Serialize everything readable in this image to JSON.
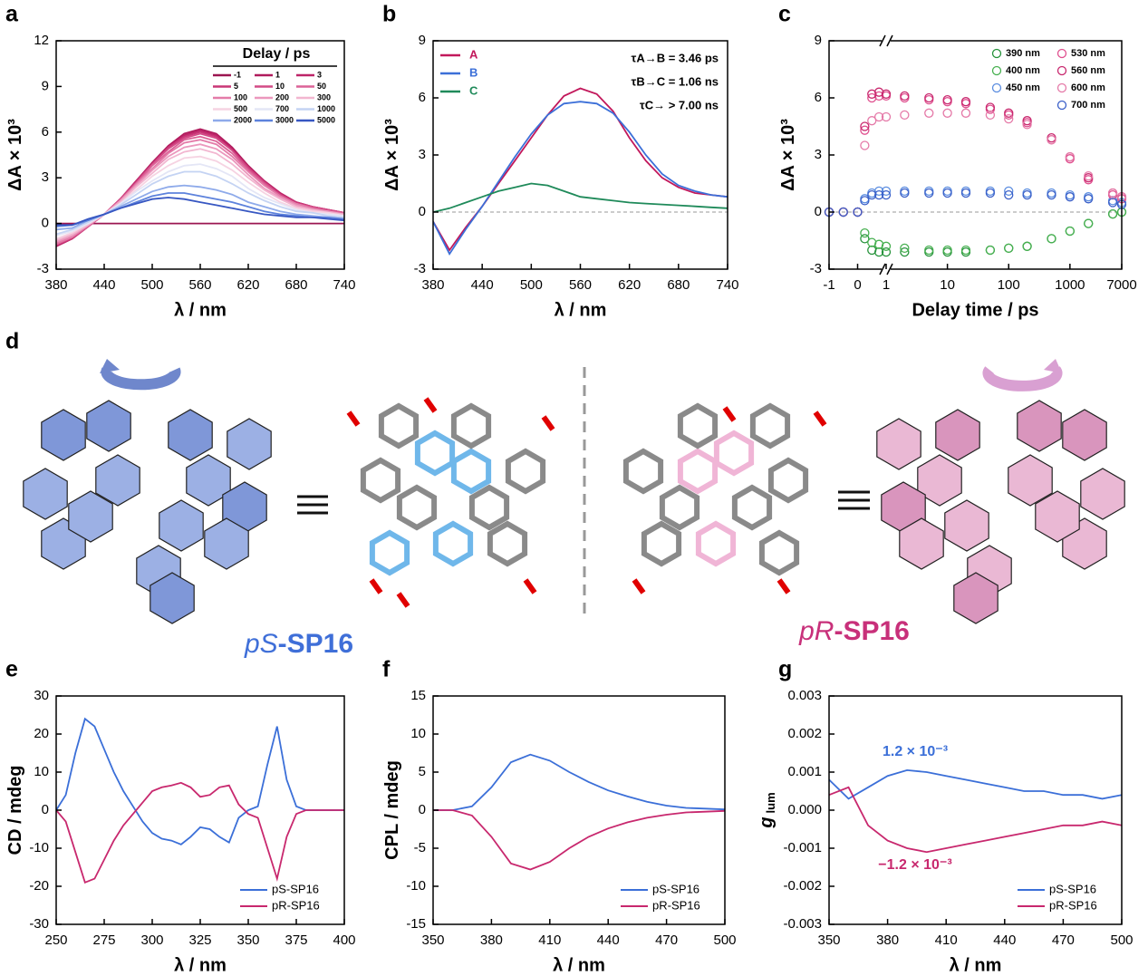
{
  "chart_data": [
    {
      "panel": "a",
      "type": "line",
      "x_label": "λ / nm",
      "y_label": "ΔA × 10³",
      "xlim": [
        380,
        740
      ],
      "ylim": [
        -3,
        12
      ],
      "xticks": [
        380,
        440,
        500,
        560,
        620,
        680,
        740
      ],
      "yticks": [
        -3,
        0,
        3,
        6,
        9,
        12
      ],
      "legend": "upper right",
      "legend_title": "Delay / ps",
      "legend_columns": 3,
      "x": [
        380,
        400,
        420,
        440,
        460,
        480,
        500,
        520,
        540,
        560,
        580,
        600,
        620,
        640,
        660,
        680,
        700,
        720,
        740
      ],
      "series": [
        {
          "name": "-1",
          "color": "#9b1550",
          "values": [
            0,
            0,
            0,
            0,
            0,
            0,
            0,
            0,
            0,
            0,
            0,
            0,
            0,
            0,
            0,
            0,
            0,
            0,
            0
          ]
        },
        {
          "name": "1",
          "color": "#b01a5c",
          "values": [
            -1.5,
            -1.0,
            -0.2,
            0.6,
            1.6,
            2.8,
            4.0,
            5.1,
            5.9,
            6.2,
            5.9,
            5.0,
            3.8,
            2.8,
            2.0,
            1.4,
            1.1,
            0.9,
            0.7
          ]
        },
        {
          "name": "3",
          "color": "#bd2468",
          "values": [
            -1.5,
            -1.0,
            -0.2,
            0.6,
            1.6,
            2.8,
            3.9,
            5.0,
            5.8,
            6.1,
            5.8,
            4.9,
            3.7,
            2.8,
            2.0,
            1.4,
            1.1,
            0.9,
            0.7
          ]
        },
        {
          "name": "5",
          "color": "#c93676",
          "values": [
            -1.4,
            -1.0,
            -0.2,
            0.6,
            1.6,
            2.7,
            3.9,
            5.0,
            5.7,
            6.0,
            5.7,
            4.8,
            3.7,
            2.7,
            1.9,
            1.4,
            1.1,
            0.9,
            0.7
          ]
        },
        {
          "name": "10",
          "color": "#d34a86",
          "values": [
            -1.4,
            -0.9,
            -0.2,
            0.6,
            1.6,
            2.7,
            3.9,
            4.9,
            5.6,
            5.9,
            5.6,
            4.8,
            3.6,
            2.7,
            1.9,
            1.3,
            1.1,
            0.9,
            0.7
          ]
        },
        {
          "name": "50",
          "color": "#dc6297",
          "values": [
            -1.4,
            -0.9,
            -0.2,
            0.6,
            1.5,
            2.6,
            3.8,
            4.7,
            5.5,
            5.7,
            5.4,
            4.6,
            3.5,
            2.6,
            1.8,
            1.3,
            1.0,
            0.8,
            0.7
          ]
        },
        {
          "name": "100",
          "color": "#e47ca9",
          "values": [
            -1.3,
            -0.9,
            -0.1,
            0.6,
            1.5,
            2.6,
            3.6,
            4.6,
            5.3,
            5.5,
            5.2,
            4.4,
            3.4,
            2.5,
            1.8,
            1.3,
            1.0,
            0.8,
            0.6
          ]
        },
        {
          "name": "200",
          "color": "#eb98bd",
          "values": [
            -1.2,
            -0.8,
            -0.1,
            0.6,
            1.5,
            2.5,
            3.5,
            4.4,
            5.0,
            5.2,
            4.9,
            4.2,
            3.2,
            2.3,
            1.7,
            1.2,
            0.9,
            0.8,
            0.6
          ]
        },
        {
          "name": "300",
          "color": "#f2b6d0",
          "values": [
            -1.1,
            -0.7,
            -0.1,
            0.6,
            1.4,
            2.4,
            3.3,
            4.2,
            4.7,
            4.9,
            4.6,
            3.9,
            3.0,
            2.2,
            1.6,
            1.1,
            0.9,
            0.7,
            0.6
          ]
        },
        {
          "name": "500",
          "color": "#f6d3e2",
          "values": [
            -1.0,
            -0.6,
            0.0,
            0.6,
            1.3,
            2.2,
            3.1,
            3.8,
            4.3,
            4.4,
            4.1,
            3.5,
            2.7,
            2.0,
            1.4,
            1.0,
            0.8,
            0.7,
            0.5
          ]
        },
        {
          "name": "700",
          "color": "#e4e6f6",
          "values": [
            -0.8,
            -0.5,
            0.0,
            0.6,
            1.3,
            2.1,
            2.8,
            3.4,
            3.8,
            3.9,
            3.6,
            3.1,
            2.3,
            1.7,
            1.3,
            0.9,
            0.7,
            0.6,
            0.5
          ]
        },
        {
          "name": "1000",
          "color": "#c4d3f3",
          "values": [
            -0.7,
            -0.4,
            0.1,
            0.6,
            1.2,
            1.9,
            2.6,
            3.1,
            3.4,
            3.4,
            3.1,
            2.6,
            2.0,
            1.5,
            1.1,
            0.8,
            0.7,
            0.5,
            0.4
          ]
        },
        {
          "name": "2000",
          "color": "#8eaaea",
          "values": [
            -0.4,
            -0.3,
            0.2,
            0.6,
            1.1,
            1.6,
            2.1,
            2.4,
            2.5,
            2.4,
            2.2,
            1.9,
            1.4,
            1.1,
            0.8,
            0.6,
            0.5,
            0.4,
            0.3
          ]
        },
        {
          "name": "3000",
          "color": "#5d82dc",
          "values": [
            -0.2,
            -0.1,
            0.2,
            0.6,
            1.0,
            1.4,
            1.8,
            2.0,
            2.0,
            1.8,
            1.6,
            1.4,
            1.1,
            0.8,
            0.6,
            0.5,
            0.4,
            0.4,
            0.3
          ]
        },
        {
          "name": "5000",
          "color": "#3757c2",
          "values": [
            -0.1,
            -0.1,
            0.3,
            0.6,
            1.0,
            1.3,
            1.6,
            1.7,
            1.6,
            1.4,
            1.2,
            1.0,
            0.8,
            0.6,
            0.5,
            0.4,
            0.4,
            0.3,
            0.2
          ]
        }
      ]
    },
    {
      "panel": "b",
      "type": "line",
      "x_label": "λ / nm",
      "y_label": "ΔA × 10³",
      "xlim": [
        380,
        740
      ],
      "ylim": [
        -3,
        9
      ],
      "xticks": [
        380,
        440,
        500,
        560,
        620,
        680,
        740
      ],
      "yticks": [
        -3,
        0,
        3,
        6,
        9
      ],
      "legend": "upper left",
      "reference_line": 0,
      "annotations": [
        {
          "text": "τA→B = 3.46 ps"
        },
        {
          "text": "τB→C = 1.06 ns"
        },
        {
          "text": "τC→ > 7.00 ns"
        }
      ],
      "x": [
        380,
        400,
        420,
        440,
        460,
        480,
        500,
        520,
        540,
        560,
        580,
        600,
        620,
        640,
        660,
        680,
        700,
        720,
        740
      ],
      "series": [
        {
          "name": "A",
          "color": "#c2185b",
          "values": [
            -0.5,
            -2.0,
            -0.8,
            0.3,
            1.5,
            2.7,
            3.9,
            5.1,
            6.1,
            6.5,
            6.2,
            5.3,
            3.9,
            2.7,
            1.8,
            1.3,
            1.0,
            0.9,
            0.8
          ]
        },
        {
          "name": "B",
          "color": "#3b6fd8",
          "values": [
            -0.5,
            -2.2,
            -0.9,
            0.3,
            1.6,
            2.9,
            4.1,
            5.1,
            5.7,
            5.8,
            5.7,
            5.2,
            4.2,
            3.0,
            2.0,
            1.4,
            1.1,
            0.9,
            0.8
          ]
        },
        {
          "name": "C",
          "color": "#1f8a5a",
          "values": [
            0,
            0.2,
            0.5,
            0.8,
            1.1,
            1.3,
            1.5,
            1.4,
            1.1,
            0.8,
            0.7,
            0.6,
            0.5,
            0.45,
            0.4,
            0.35,
            0.3,
            0.25,
            0.2
          ]
        }
      ]
    },
    {
      "panel": "c",
      "type": "scatter",
      "x_label": "Delay time / ps",
      "y_label": "ΔA × 10³",
      "xlim": [
        -1,
        7000
      ],
      "ylim": [
        -3,
        9
      ],
      "x_scale": "broken linear-log",
      "x_break": 1,
      "xticks": [
        -1,
        0,
        1,
        10,
        100,
        1000,
        7000
      ],
      "yticks": [
        -3,
        0,
        3,
        6,
        9
      ],
      "legend": "upper right",
      "reference_line": 0,
      "x": [
        -1,
        -0.5,
        0,
        0.25,
        0.5,
        0.75,
        1,
        2,
        5,
        10,
        20,
        50,
        100,
        200,
        500,
        1000,
        2000,
        5000,
        7000
      ],
      "series": [
        {
          "name": "390 nm",
          "color": "#25923a",
          "values": [
            0,
            0,
            0,
            -1.4,
            -2.0,
            -2.1,
            -2.1,
            -2.1,
            -2.1,
            -2.1,
            -2.1,
            -2.0,
            -1.9,
            -1.8,
            -1.4,
            -1.0,
            -0.6,
            -0.1,
            0
          ]
        },
        {
          "name": "400 nm",
          "color": "#47b050",
          "values": [
            0,
            0,
            0,
            -1.1,
            -1.6,
            -1.7,
            -1.8,
            -1.9,
            -2.0,
            -2.0,
            -2.0,
            -2.0,
            -1.9,
            -1.8,
            -1.4,
            -1.0,
            -0.6,
            -0.1,
            0
          ]
        },
        {
          "name": "450 nm",
          "color": "#5b8de0",
          "values": [
            0,
            0,
            0,
            0.7,
            1.0,
            1.1,
            1.1,
            1.1,
            1.1,
            1.1,
            1.1,
            1.1,
            1.1,
            1.0,
            1.0,
            0.9,
            0.8,
            0.6,
            0.5
          ]
        },
        {
          "name": "530 nm",
          "color": "#e0508f",
          "values": [
            0,
            0,
            0,
            4.3,
            6.0,
            6.1,
            6.1,
            6.0,
            5.9,
            5.8,
            5.7,
            5.4,
            5.1,
            4.7,
            3.8,
            2.8,
            1.7,
            0.9,
            0.7
          ]
        },
        {
          "name": "560 nm",
          "color": "#c8286e",
          "values": [
            0,
            0,
            0,
            4.5,
            6.2,
            6.3,
            6.2,
            6.1,
            6.0,
            5.9,
            5.8,
            5.5,
            5.2,
            4.8,
            3.9,
            2.9,
            1.8,
            1.0,
            0.8
          ]
        },
        {
          "name": "600 nm",
          "color": "#e57aa8",
          "values": [
            0,
            0,
            0,
            3.5,
            4.8,
            5.0,
            5.0,
            5.1,
            5.2,
            5.2,
            5.2,
            5.1,
            4.9,
            4.6,
            3.8,
            2.9,
            1.9,
            1.0,
            0.8
          ]
        },
        {
          "name": "700 nm",
          "color": "#3a5fc8",
          "values": [
            0,
            0,
            0,
            0.6,
            0.9,
            0.9,
            0.9,
            1.0,
            1.0,
            1.0,
            1.0,
            1.0,
            0.9,
            0.9,
            0.9,
            0.8,
            0.7,
            0.5,
            0.4
          ]
        }
      ]
    },
    {
      "panel": "e",
      "type": "line",
      "x_label": "λ / nm",
      "y_label": "CD / mdeg",
      "xlim": [
        250,
        400
      ],
      "ylim": [
        -30,
        30
      ],
      "xticks": [
        250,
        275,
        300,
        325,
        350,
        375,
        400
      ],
      "yticks": [
        -30,
        -20,
        -10,
        0,
        10,
        20,
        30
      ],
      "legend": "lower right",
      "x": [
        250,
        255,
        260,
        265,
        270,
        275,
        280,
        285,
        290,
        295,
        300,
        305,
        310,
        315,
        320,
        325,
        330,
        335,
        340,
        345,
        350,
        355,
        360,
        365,
        370,
        375,
        380,
        385,
        390,
        395,
        400
      ],
      "series": [
        {
          "name": "pS-SP16",
          "color": "#3b6fd8",
          "values": [
            0,
            4,
            15,
            24,
            22,
            16,
            10,
            5,
            1,
            -3,
            -6,
            -7.5,
            -8,
            -9,
            -7,
            -4.5,
            -5,
            -7,
            -8.5,
            -2,
            0,
            1,
            12,
            22,
            8,
            1,
            0,
            0,
            0,
            0,
            0
          ]
        },
        {
          "name": "pR-SP16",
          "color": "#c8286e",
          "values": [
            0,
            -3,
            -11,
            -19,
            -18,
            -13,
            -8,
            -4,
            -1,
            2,
            5,
            6,
            6.5,
            7.2,
            6,
            3.5,
            4,
            6,
            6.5,
            1.5,
            -1,
            -2,
            -10,
            -18,
            -7,
            -1,
            0,
            0,
            0,
            0,
            0
          ]
        }
      ]
    },
    {
      "panel": "f",
      "type": "line",
      "x_label": "λ / nm",
      "y_label": "CPL / mdeg",
      "xlim": [
        350,
        500
      ],
      "ylim": [
        -15,
        15
      ],
      "xticks": [
        350,
        380,
        410,
        440,
        470,
        500
      ],
      "yticks": [
        -15,
        -10,
        -5,
        0,
        5,
        10,
        15
      ],
      "legend": "lower right",
      "x": [
        350,
        360,
        370,
        380,
        390,
        400,
        410,
        420,
        430,
        440,
        450,
        460,
        470,
        480,
        490,
        500
      ],
      "series": [
        {
          "name": "pS-SP16",
          "color": "#3b6fd8",
          "values": [
            0,
            0,
            0.5,
            3,
            6.3,
            7.3,
            6.5,
            5,
            3.7,
            2.6,
            1.8,
            1.1,
            0.6,
            0.3,
            0.2,
            0.1
          ]
        },
        {
          "name": "pR-SP16",
          "color": "#c8286e",
          "values": [
            0,
            0,
            -0.7,
            -3.5,
            -7,
            -7.8,
            -6.8,
            -5,
            -3.5,
            -2.4,
            -1.6,
            -1.0,
            -0.6,
            -0.3,
            -0.2,
            -0.1
          ]
        }
      ]
    },
    {
      "panel": "g",
      "type": "line",
      "x_label": "λ / nm",
      "y_label": "g",
      "y_label_sub": "lum",
      "xlim": [
        350,
        500
      ],
      "ylim": [
        -0.003,
        0.003
      ],
      "xticks": [
        350,
        380,
        410,
        440,
        470,
        500
      ],
      "yticks": [
        -0.003,
        -0.002,
        -0.001,
        {
          "value": 0,
          "label": "0.000"
        },
        0.001,
        0.002,
        0.003
      ],
      "legend": "lower right",
      "annotations": [
        {
          "text": "1.2 × 10⁻³",
          "color": "#3b6fd8"
        },
        {
          "text": "−1.2 × 10⁻³",
          "color": "#c8286e"
        }
      ],
      "x": [
        350,
        360,
        370,
        380,
        390,
        400,
        410,
        420,
        430,
        440,
        450,
        460,
        470,
        480,
        490,
        500
      ],
      "series": [
        {
          "name": "pS-SP16",
          "color": "#3b6fd8",
          "values": [
            0.0008,
            0.0003,
            0.0006,
            0.0009,
            0.00105,
            0.001,
            0.0009,
            0.0008,
            0.0007,
            0.0006,
            0.0005,
            0.0005,
            0.0004,
            0.0004,
            0.0003,
            0.0004
          ]
        },
        {
          "name": "pR-SP16",
          "color": "#c8286e",
          "values": [
            0.0004,
            0.0006,
            -0.0004,
            -0.0008,
            -0.001,
            -0.0011,
            -0.001,
            -0.0009,
            -0.0008,
            -0.0007,
            -0.0006,
            -0.0005,
            -0.0004,
            -0.0004,
            -0.0003,
            -0.0004
          ]
        }
      ]
    }
  ],
  "panel_d": {
    "panel": "d",
    "left_label": [
      "pS",
      "-SP16"
    ],
    "right_label": [
      "pR",
      "-SP16"
    ]
  }
}
